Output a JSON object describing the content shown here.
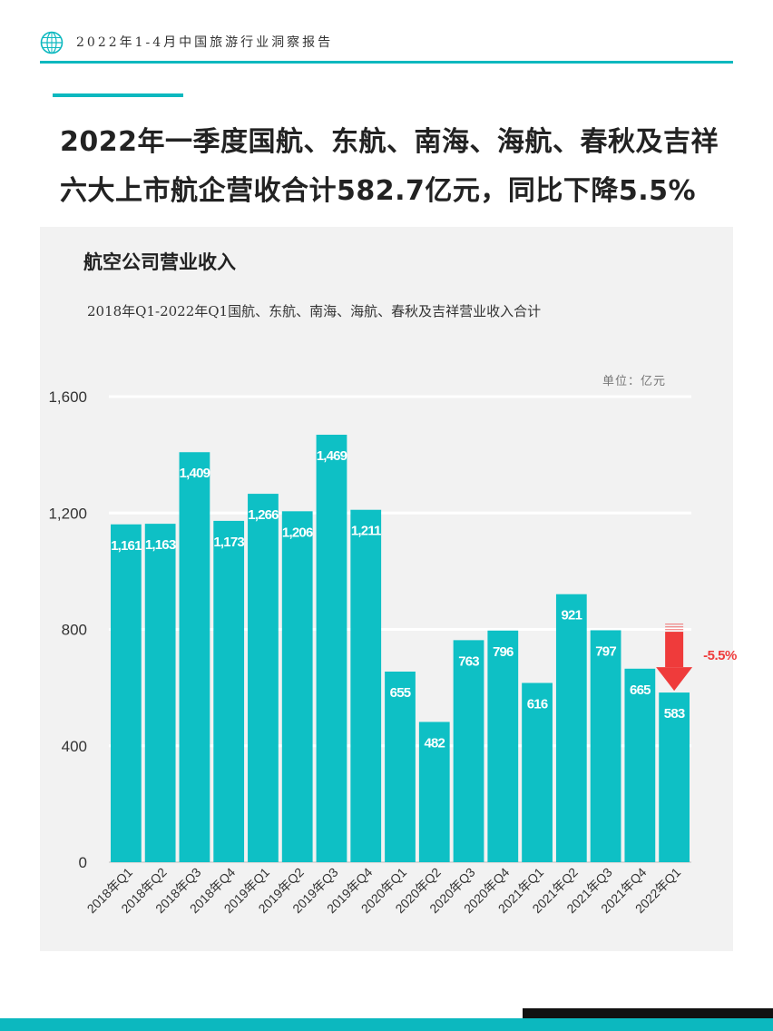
{
  "header": {
    "title": "2022年1-4月中国旅游行业洞察报告",
    "logo_icon": "globe-icon"
  },
  "headline": {
    "line1": "2022年一季度国航、东航、南海、海航、春秋及吉祥",
    "line2": "六大上市航企营收合计582.7亿元，同比下降5.5%"
  },
  "colors": {
    "accent": "#0cb8bf",
    "bar": "#0ec0c5",
    "decline": "#ef3b3b"
  },
  "chart_data": {
    "type": "bar",
    "title": "航空公司营业收入",
    "subtitle": "2018年Q1-2022年Q1国航、东航、南海、海航、春秋及吉祥营业收入合计",
    "unit": "单位：亿元",
    "categories": [
      "2018年Q1",
      "2018年Q2",
      "2018年Q3",
      "2018年Q4",
      "2019年Q1",
      "2019年Q2",
      "2019年Q3",
      "2019年Q4",
      "2020年Q1",
      "2020年Q2",
      "2020年Q3",
      "2020年Q4",
      "2021年Q1",
      "2021年Q2",
      "2021年Q3",
      "2021年Q4",
      "2022年Q1"
    ],
    "values": [
      1161,
      1163,
      1409,
      1173,
      1266,
      1206,
      1469,
      1211,
      655,
      482,
      763,
      796,
      616,
      921,
      797,
      665,
      583
    ],
    "value_labels": [
      "1,161",
      "1,163",
      "1,409",
      "1,173",
      "1,266",
      "1,206",
      "1,469",
      "1,211",
      "655",
      "482",
      "763",
      "796",
      "616",
      "921",
      "797",
      "665",
      "583"
    ],
    "ylim": [
      0,
      1600
    ],
    "yticks": [
      0,
      400,
      800,
      1200,
      1600
    ],
    "ytick_labels": [
      "0",
      "400",
      "800",
      "1,200",
      "1,600"
    ],
    "grid": true,
    "annotation": {
      "text": "-5.5%",
      "category": "2022年Q1",
      "arrow_from": 820,
      "arrow_to": 583,
      "icon": "down-arrow-icon"
    }
  }
}
